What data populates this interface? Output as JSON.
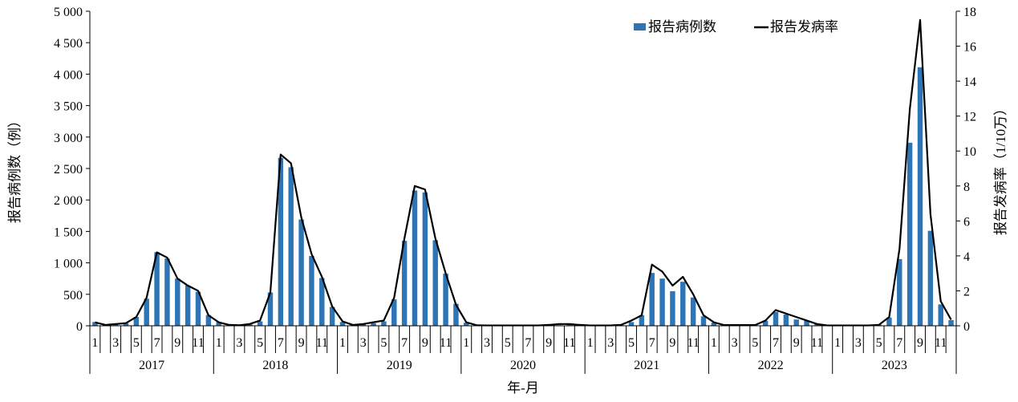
{
  "chart_data": {
    "type": "bar",
    "title": "",
    "xlabel": "年-月",
    "ylabel_left": "报告病例数（例）",
    "ylabel_right": "报告发病率（1/10万）",
    "ylim_left": [
      0,
      5000
    ],
    "ylim_right": [
      0,
      18
    ],
    "yticks_left": [
      "0",
      "500",
      "1 000",
      "1 500",
      "2 000",
      "2 500",
      "3 000",
      "3 500",
      "4 000",
      "4 500",
      "5 000"
    ],
    "yticks_right": [
      "0",
      "2",
      "4",
      "6",
      "8",
      "10",
      "12",
      "14",
      "16",
      "18"
    ],
    "years": [
      "2017",
      "2018",
      "2019",
      "2020",
      "2021",
      "2022",
      "2023"
    ],
    "month_tick_labels": [
      "1",
      "",
      "3",
      "",
      "5",
      "",
      "7",
      "",
      "9",
      "",
      "11",
      ""
    ],
    "legend_position": "top-right",
    "colors": {
      "bar": "#2E75B6",
      "line": "#000000",
      "axis": "#000000"
    },
    "series": [
      {
        "name": "报告病例数",
        "type": "bar",
        "axis": "left",
        "values": [
          60,
          20,
          30,
          40,
          140,
          430,
          1170,
          1070,
          750,
          640,
          540,
          170,
          60,
          20,
          10,
          30,
          70,
          530,
          2670,
          2520,
          1690,
          1110,
          760,
          300,
          60,
          20,
          30,
          40,
          70,
          420,
          1350,
          2150,
          2120,
          1360,
          830,
          350,
          50,
          10,
          5,
          5,
          5,
          5,
          5,
          5,
          5,
          10,
          20,
          10,
          5,
          5,
          5,
          10,
          60,
          170,
          840,
          750,
          550,
          700,
          450,
          150,
          50,
          10,
          10,
          10,
          10,
          80,
          220,
          180,
          100,
          80,
          30,
          5,
          5,
          5,
          5,
          5,
          20,
          130,
          1060,
          2910,
          4110,
          1510,
          340,
          90
        ]
      },
      {
        "name": "报告发病率",
        "type": "line",
        "axis": "right",
        "values": [
          0.2,
          0.05,
          0.1,
          0.15,
          0.5,
          1.6,
          4.2,
          3.9,
          2.7,
          2.3,
          2.0,
          0.6,
          0.2,
          0.05,
          0.03,
          0.1,
          0.3,
          1.9,
          9.8,
          9.3,
          6.2,
          4.1,
          2.8,
          1.1,
          0.25,
          0.05,
          0.1,
          0.2,
          0.3,
          1.6,
          5.0,
          8.0,
          7.8,
          5.0,
          3.0,
          1.2,
          0.2,
          0.03,
          0.02,
          0.02,
          0.02,
          0.02,
          0.02,
          0.02,
          0.05,
          0.1,
          0.1,
          0.05,
          0.02,
          0.02,
          0.02,
          0.05,
          0.3,
          0.6,
          3.5,
          3.1,
          2.3,
          2.8,
          1.8,
          0.6,
          0.2,
          0.04,
          0.04,
          0.04,
          0.04,
          0.3,
          0.9,
          0.7,
          0.5,
          0.3,
          0.1,
          0.02,
          0.02,
          0.02,
          0.02,
          0.02,
          0.05,
          0.5,
          4.4,
          12.4,
          17.5,
          6.4,
          1.4,
          0.35
        ]
      }
    ]
  }
}
